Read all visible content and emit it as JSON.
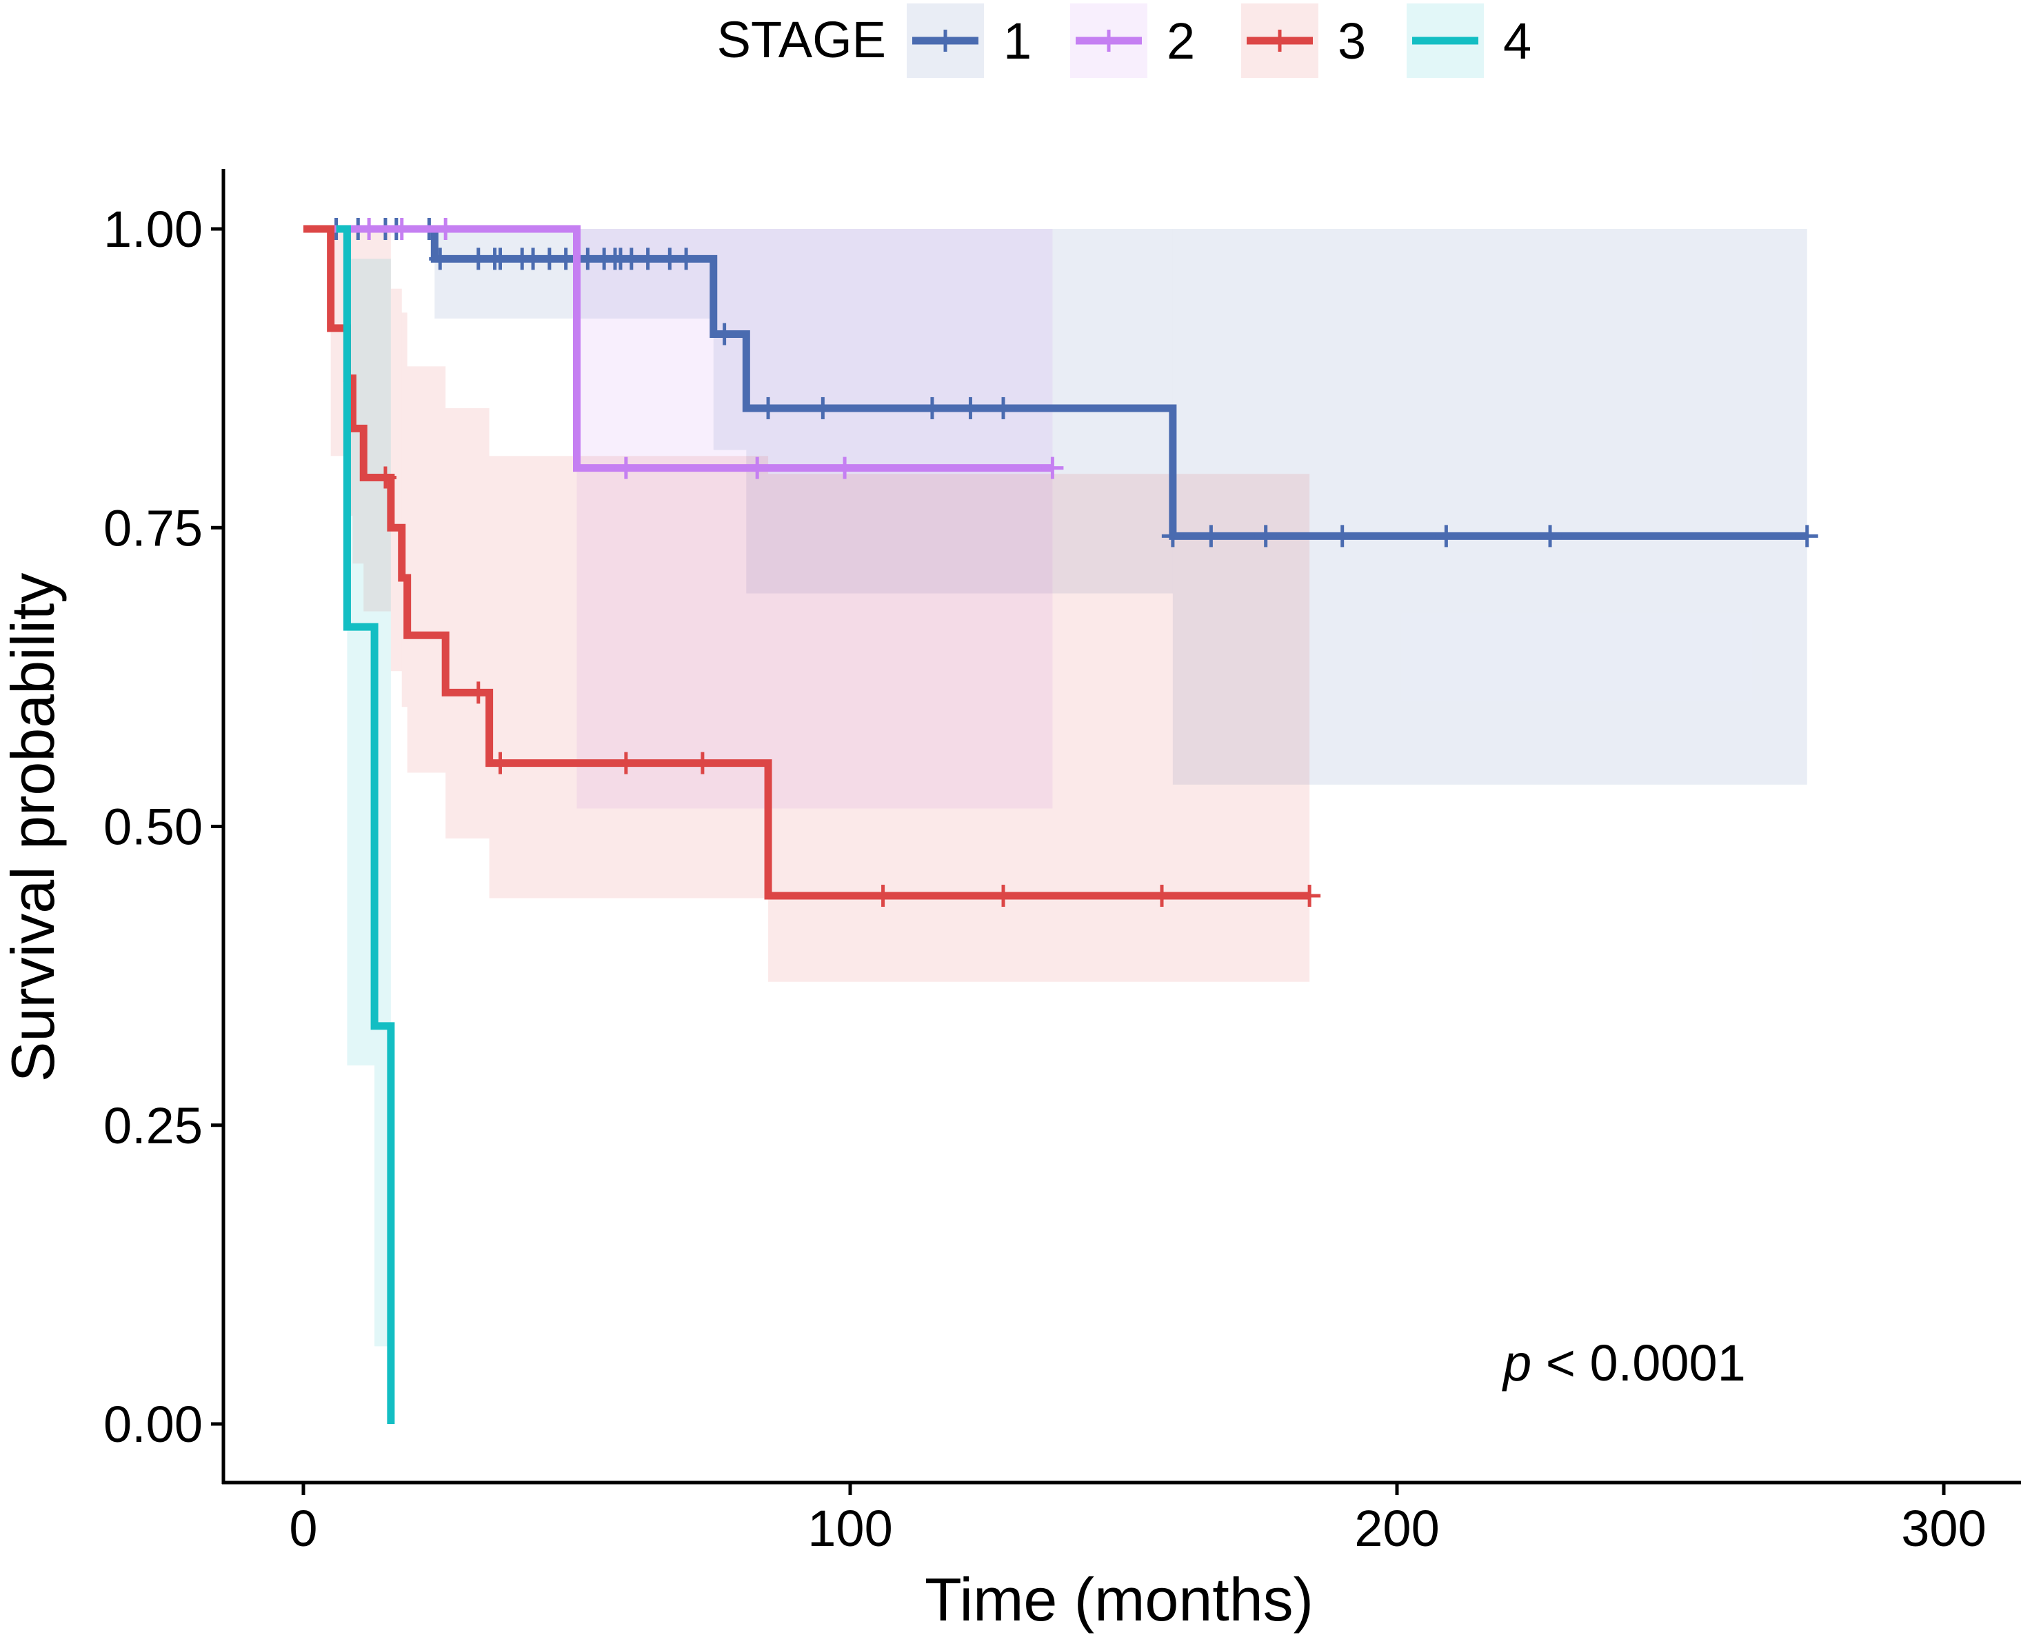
{
  "chart_data": {
    "type": "line",
    "subtype": "kaplan-meier",
    "title": "",
    "xlabel": "Time (months)",
    "ylabel": "Survival probability",
    "xlim": [
      -15,
      310
    ],
    "ylim": [
      -0.05,
      1.05
    ],
    "xticks": [
      0,
      100,
      200,
      300
    ],
    "xtick_labels": [
      "0",
      "100",
      "200",
      "300"
    ],
    "yticks": [
      0,
      0.25,
      0.5,
      0.75,
      1.0
    ],
    "ytick_labels": [
      "0.00",
      "0.25",
      "0.50",
      "0.75",
      "1.00"
    ],
    "grid": false,
    "legend": {
      "title": "STAGE",
      "position": "top"
    },
    "annotation": {
      "p_symbol": "p",
      "p_text": " < 0.0001",
      "x": 245,
      "y": 0.05
    },
    "series": [
      {
        "name": "1",
        "color": "#4A6BB0",
        "steps": [
          [
            0,
            1.0
          ],
          [
            24,
            0.975
          ],
          [
            75,
            0.912
          ],
          [
            81,
            0.85
          ],
          [
            159,
            0.743
          ],
          [
            275,
            0.743
          ]
        ],
        "censor_times": [
          6,
          10,
          15,
          17,
          23,
          25,
          32,
          35,
          36,
          40,
          42,
          45,
          48,
          52,
          55,
          57,
          58,
          60,
          63,
          67,
          70,
          77,
          85,
          95,
          115,
          122,
          128,
          159,
          166,
          176,
          190,
          209,
          228,
          275
        ],
        "ci": [
          [
            0,
            1.0,
            1.0
          ],
          [
            24,
            1.0,
            0.925
          ],
          [
            75,
            1.0,
            0.815
          ],
          [
            81,
            1.0,
            0.695
          ],
          [
            159,
            1.0,
            0.535
          ],
          [
            275,
            1.0,
            0.535
          ]
        ]
      },
      {
        "name": "2",
        "color": "#C57FF2",
        "steps": [
          [
            0,
            1.0
          ],
          [
            50,
            0.8
          ],
          [
            137,
            0.8
          ]
        ],
        "censor_times": [
          12,
          18,
          26,
          59,
          83,
          99,
          137
        ],
        "ci": [
          [
            0,
            1.0,
            1.0
          ],
          [
            50,
            1.0,
            0.515
          ],
          [
            136,
            1.0,
            0.515
          ]
        ]
      },
      {
        "name": "3",
        "color": "#DC4646",
        "steps": [
          [
            0,
            1.0
          ],
          [
            5,
            0.917
          ],
          [
            8,
            0.875
          ],
          [
            9,
            0.833
          ],
          [
            11,
            0.792
          ],
          [
            16,
            0.75
          ],
          [
            18,
            0.708
          ],
          [
            19,
            0.66
          ],
          [
            26,
            0.612
          ],
          [
            34,
            0.553
          ],
          [
            85,
            0.442
          ],
          [
            184,
            0.442
          ]
        ],
        "censor_times": [
          15,
          32,
          36,
          59,
          73,
          106,
          128,
          157,
          184
        ],
        "ci": [
          [
            0,
            1.0,
            1.0
          ],
          [
            5,
            1.0,
            0.81
          ],
          [
            8,
            1.0,
            0.76
          ],
          [
            9,
            1.0,
            0.72
          ],
          [
            11,
            1.0,
            0.68
          ],
          [
            16,
            0.95,
            0.63
          ],
          [
            18,
            0.93,
            0.6
          ],
          [
            19,
            0.885,
            0.545
          ],
          [
            26,
            0.85,
            0.49
          ],
          [
            34,
            0.81,
            0.44
          ],
          [
            85,
            0.795,
            0.37
          ],
          [
            184,
            0.795,
            0.24
          ]
        ]
      },
      {
        "name": "4",
        "color": "#13BEC3",
        "steps": [
          [
            0,
            1.0
          ],
          [
            8,
            0.667
          ],
          [
            13,
            0.333
          ],
          [
            16,
            0.0
          ]
        ],
        "censor_times": [],
        "start": 6,
        "ci": [
          [
            6,
            1.0,
            1.0
          ],
          [
            8,
            0.975,
            0.3
          ],
          [
            13,
            0.975,
            0.065
          ],
          [
            16,
            0.975,
            0.065
          ]
        ]
      }
    ]
  }
}
